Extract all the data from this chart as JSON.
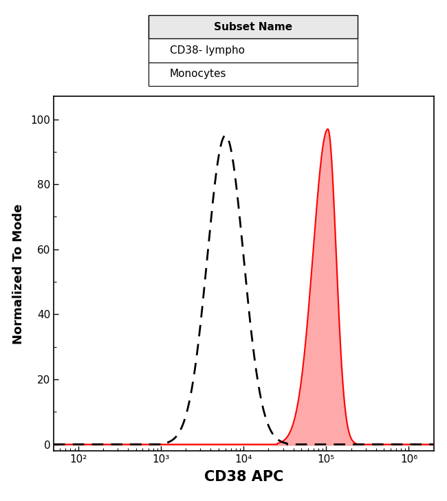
{
  "title": "",
  "xlabel": "CD38 APC",
  "ylabel": "Normalized To Mode",
  "xlim_log": [
    1.7,
    6.3
  ],
  "ylim": [
    -2,
    107
  ],
  "yticks": [
    0,
    20,
    40,
    60,
    80,
    100
  ],
  "xtick_positions": [
    100,
    1000,
    10000,
    100000,
    1000000
  ],
  "xtick_labels": [
    "10²",
    "10³",
    "10⁴",
    "10⁵",
    "10⁶"
  ],
  "lympho_peak_log": 3.78,
  "lympho_sigma_log": 0.22,
  "lympho_peak_height": 95,
  "lympho_color": "#000000",
  "mono_peak_log": 5.02,
  "mono_sigma_log": 0.1,
  "mono_peak_height": 97,
  "mono_fill_color": "#FFAAAA",
  "mono_line_color": "#FF0000",
  "background_color": "#FFFFFF",
  "plot_bg_color": "#FFFFFF",
  "legend_title": "Subset Name",
  "legend_label1": "CD38- lympho",
  "legend_label2": "Monocytes",
  "xlabel_fontsize": 15,
  "ylabel_fontsize": 13,
  "tick_fontsize": 11,
  "legend_fontsize": 11,
  "baseline_color": "#FF0000",
  "dashes": [
    6,
    4
  ]
}
